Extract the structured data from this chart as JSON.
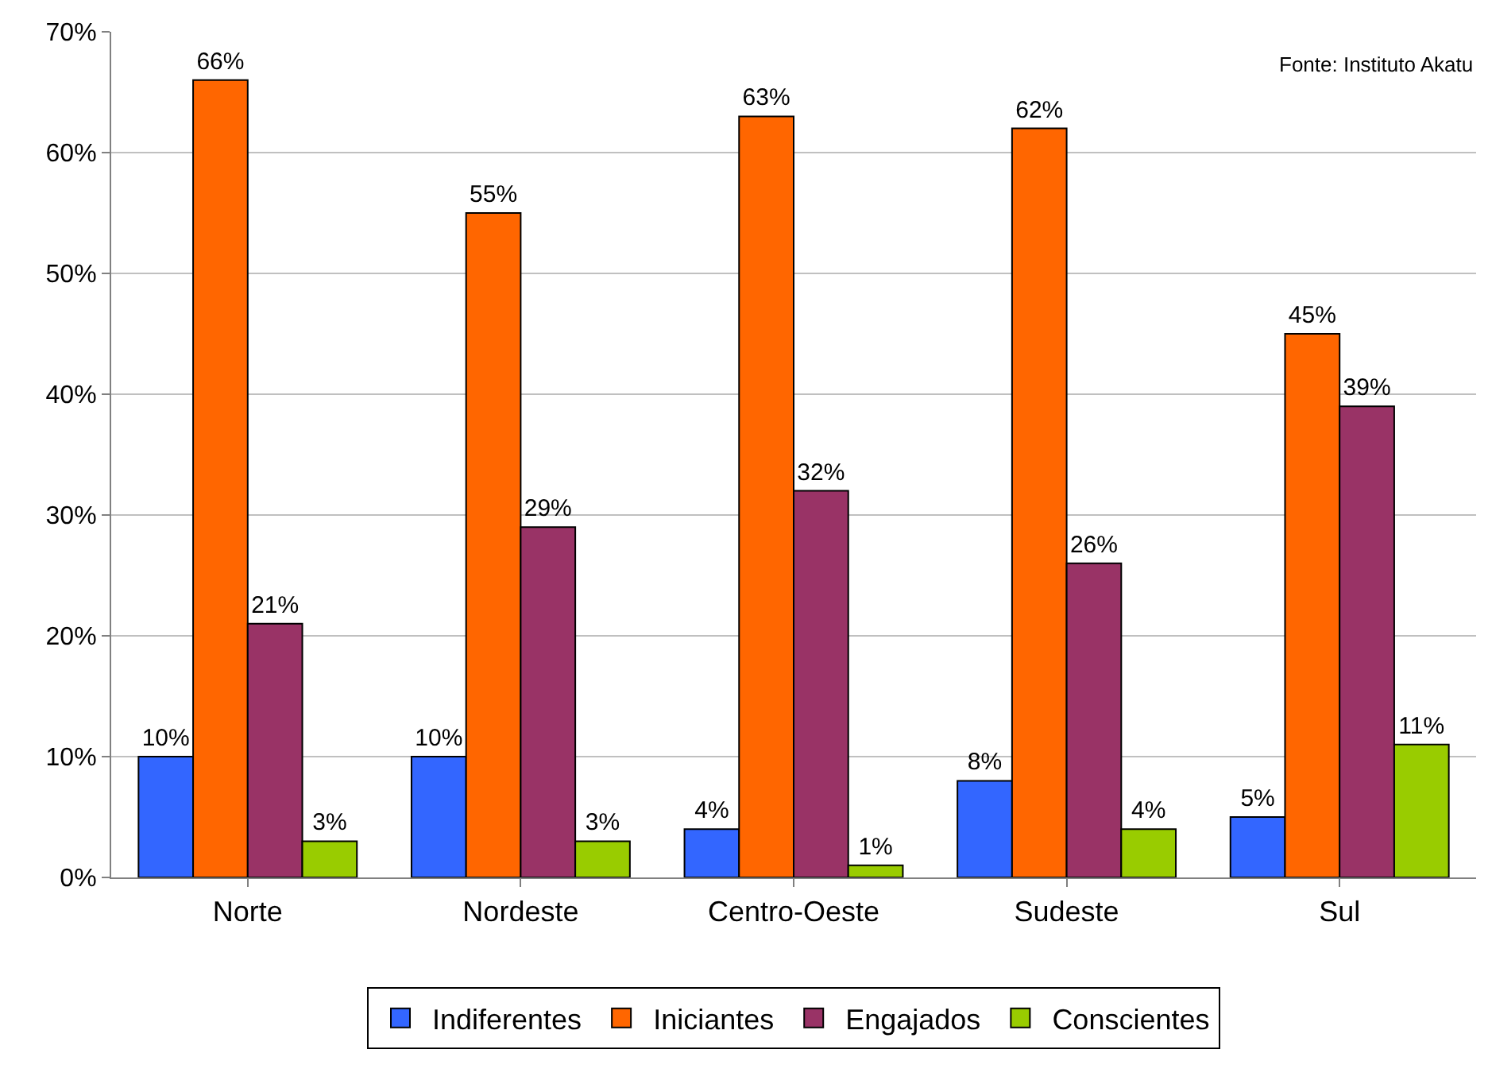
{
  "chart_data": {
    "type": "bar",
    "categories": [
      "Norte",
      "Nordeste",
      "Centro-Oeste",
      "Sudeste",
      "Sul"
    ],
    "series": [
      {
        "name": "Indiferentes",
        "color": "#3366ff",
        "values": [
          10,
          10,
          4,
          8,
          5
        ],
        "value_labels": [
          "10%",
          "10%",
          "4%",
          "8%",
          "5%"
        ]
      },
      {
        "name": "Iniciantes",
        "color": "#ff6600",
        "values": [
          66,
          55,
          63,
          62,
          45
        ],
        "value_labels": [
          "66%",
          "55%",
          "63%",
          "62%",
          "45%"
        ]
      },
      {
        "name": "Engajados",
        "color": "#993366",
        "values": [
          21,
          29,
          32,
          26,
          39
        ],
        "value_labels": [
          "21%",
          "29%",
          "32%",
          "26%",
          "39%"
        ]
      },
      {
        "name": "Conscientes",
        "color": "#99cc00",
        "values": [
          3,
          3,
          1,
          4,
          11
        ],
        "value_labels": [
          "3%",
          "3%",
          "1%",
          "4%",
          "11%"
        ]
      }
    ],
    "ylim": [
      0,
      70
    ],
    "yticks": [
      {
        "value": 0,
        "label": "0%"
      },
      {
        "value": 10,
        "label": "10%"
      },
      {
        "value": 20,
        "label": "20%"
      },
      {
        "value": 30,
        "label": "30%"
      },
      {
        "value": 40,
        "label": "40%"
      },
      {
        "value": 50,
        "label": "50%"
      },
      {
        "value": 60,
        "label": "60%"
      },
      {
        "value": 70,
        "label": "70%"
      }
    ],
    "grid": "y",
    "legend": "bottom",
    "annotations": [
      "Fonte: Instituto Akatu"
    ]
  }
}
